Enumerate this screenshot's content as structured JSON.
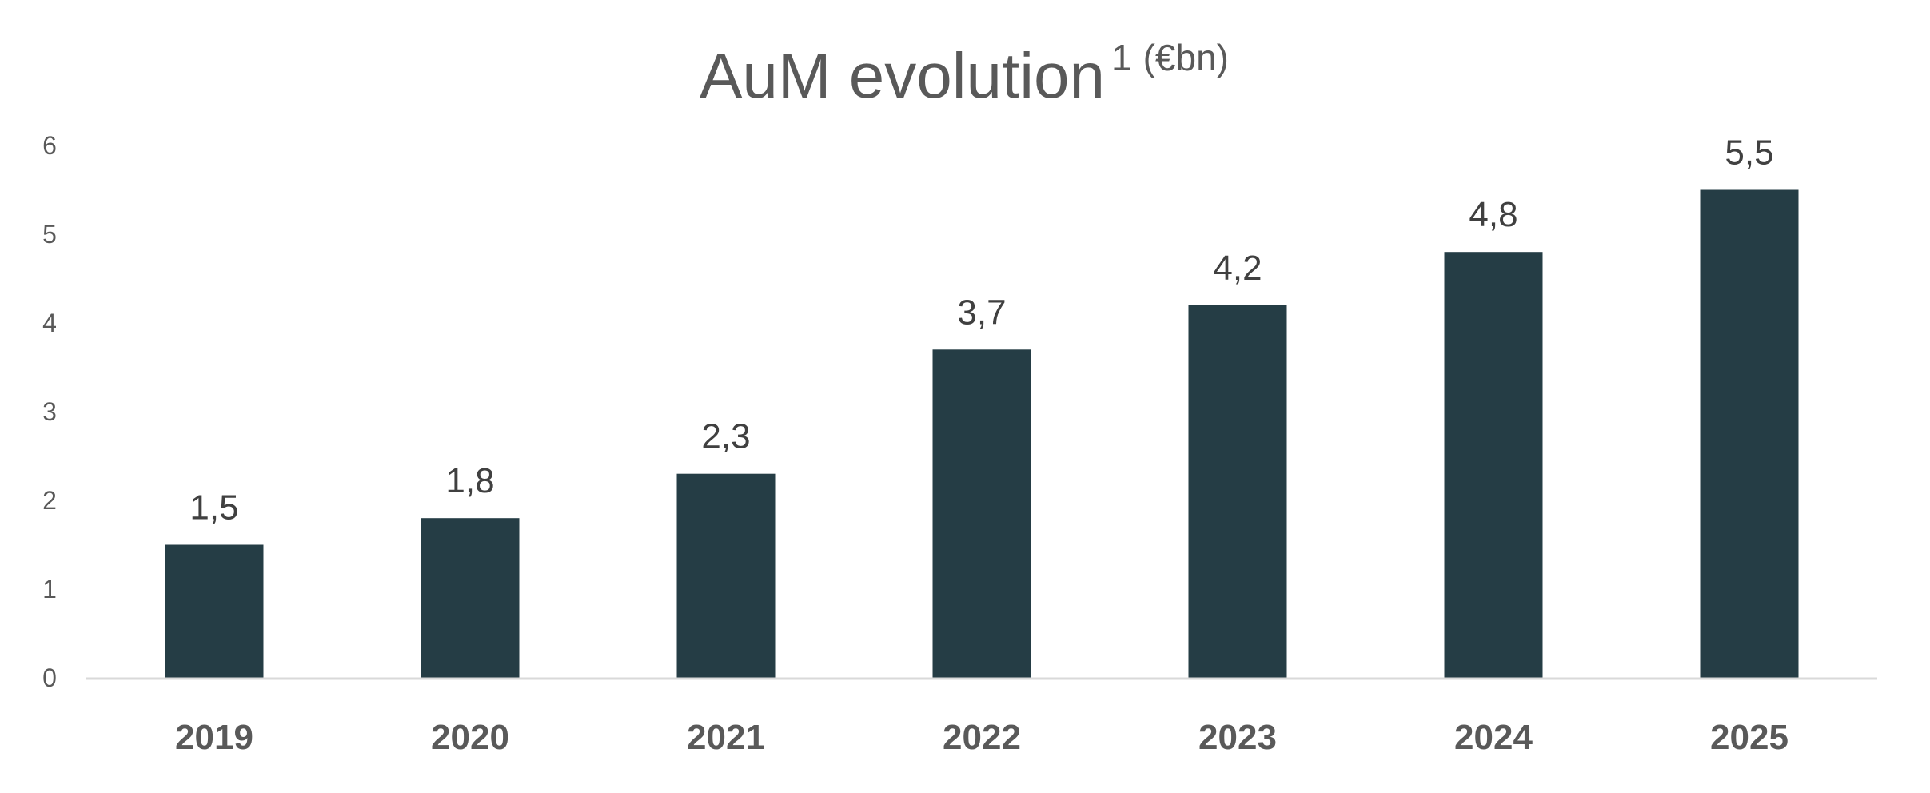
{
  "chart_data": {
    "type": "bar",
    "title": "AuM evolution",
    "title_superscript": "1",
    "title_unit": "(€bn)",
    "categories": [
      "2019",
      "2020",
      "2021",
      "2022",
      "2023",
      "2024",
      "2025"
    ],
    "values": [
      1.5,
      1.8,
      2.3,
      3.7,
      4.2,
      4.8,
      5.5
    ],
    "data_labels": [
      "1,5",
      "1,8",
      "2,3",
      "3,7",
      "4,2",
      "4,8",
      "5,5"
    ],
    "ylim": [
      0,
      6
    ],
    "yticks": [
      "0",
      "1",
      "2",
      "3",
      "4",
      "5",
      "6"
    ],
    "xlabel": "",
    "ylabel": "",
    "grid": false,
    "legend": "none",
    "colors": {
      "bar": "#253d45",
      "axis": "#d9d9d9",
      "text": "#595959"
    }
  }
}
